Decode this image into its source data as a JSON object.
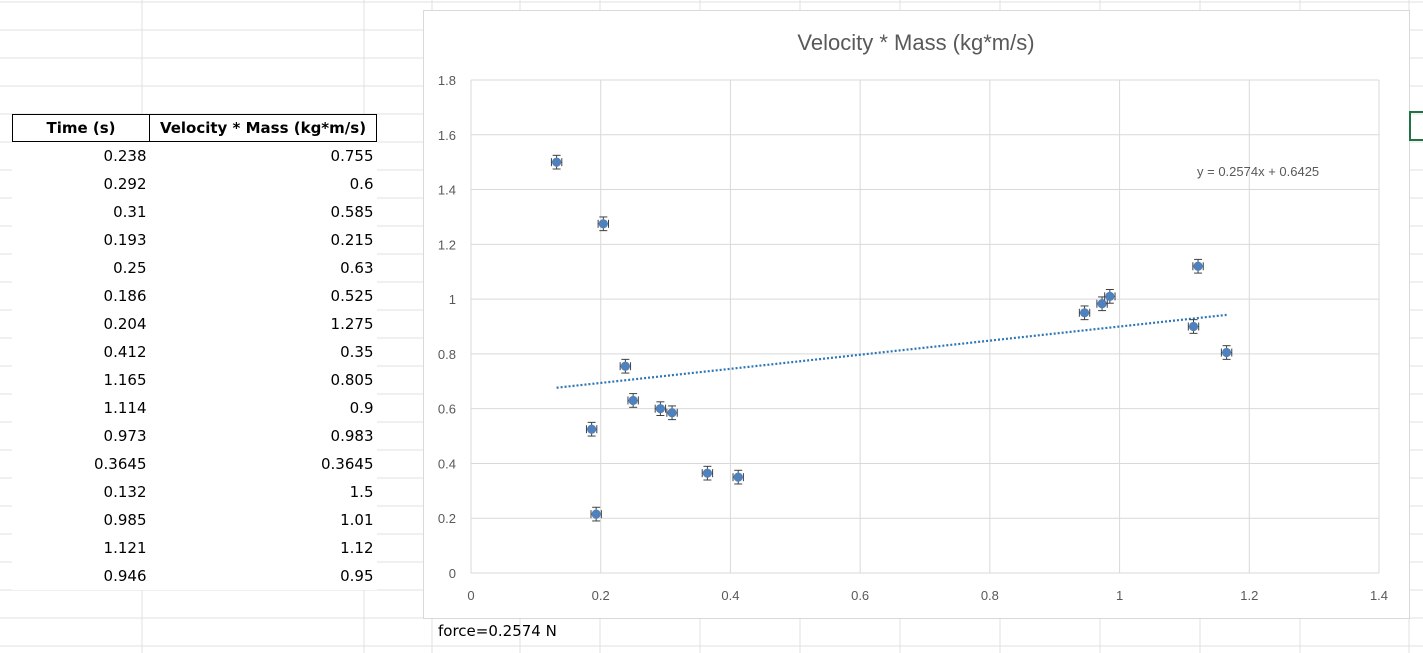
{
  "table": {
    "headers": [
      "Time (s)",
      "Velocity * Mass (kg*m/s)"
    ],
    "rows": [
      [
        "0.238",
        "0.755"
      ],
      [
        "0.292",
        "0.6"
      ],
      [
        "0.31",
        "0.585"
      ],
      [
        "0.193",
        "0.215"
      ],
      [
        "0.25",
        "0.63"
      ],
      [
        "0.186",
        "0.525"
      ],
      [
        "0.204",
        "1.275"
      ],
      [
        "0.412",
        "0.35"
      ],
      [
        "1.165",
        "0.805"
      ],
      [
        "1.114",
        "0.9"
      ],
      [
        "0.973",
        "0.983"
      ],
      [
        "0.3645",
        "0.3645"
      ],
      [
        "0.132",
        "1.5"
      ],
      [
        "0.985",
        "1.01"
      ],
      [
        "1.121",
        "1.12"
      ],
      [
        "0.946",
        "0.95"
      ]
    ]
  },
  "note": {
    "text": "force=0.2574 N"
  },
  "colors": {
    "marker": "#4f81bd",
    "trendline": "#2e75b6",
    "gridline": "#d9d9d9",
    "text": "#595959",
    "selection": "#217346"
  },
  "chart_data": {
    "type": "scatter",
    "title": "Velocity * Mass (kg*m/s)",
    "xlabel": "",
    "ylabel": "",
    "xlim": [
      0,
      1.4
    ],
    "ylim": [
      0,
      1.8
    ],
    "x_ticks": [
      "0",
      "0.2",
      "0.4",
      "0.6",
      "0.8",
      "1",
      "1.2",
      "1.4"
    ],
    "y_ticks": [
      "0",
      "0.2",
      "0.4",
      "0.6",
      "0.8",
      "1",
      "1.2",
      "1.4",
      "1.6",
      "1.8"
    ],
    "grid": true,
    "legend": "none",
    "error_bars": {
      "x": 0.008,
      "y": 0.025
    },
    "series": [
      {
        "x": [
          0.238,
          0.292,
          0.31,
          0.193,
          0.25,
          0.186,
          0.204,
          0.412,
          1.165,
          1.114,
          0.973,
          0.3645,
          0.132,
          0.985,
          1.121,
          0.946
        ],
        "y": [
          0.755,
          0.6,
          0.585,
          0.215,
          0.63,
          0.525,
          1.275,
          0.35,
          0.805,
          0.9,
          0.983,
          0.3645,
          1.5,
          1.01,
          1.12,
          0.95
        ]
      }
    ],
    "trendline": {
      "type": "linear",
      "slope": 0.2574,
      "intercept": 0.6425,
      "x_range": [
        0.132,
        1.165
      ],
      "equation": "y = 0.2574x + 0.6425"
    }
  }
}
